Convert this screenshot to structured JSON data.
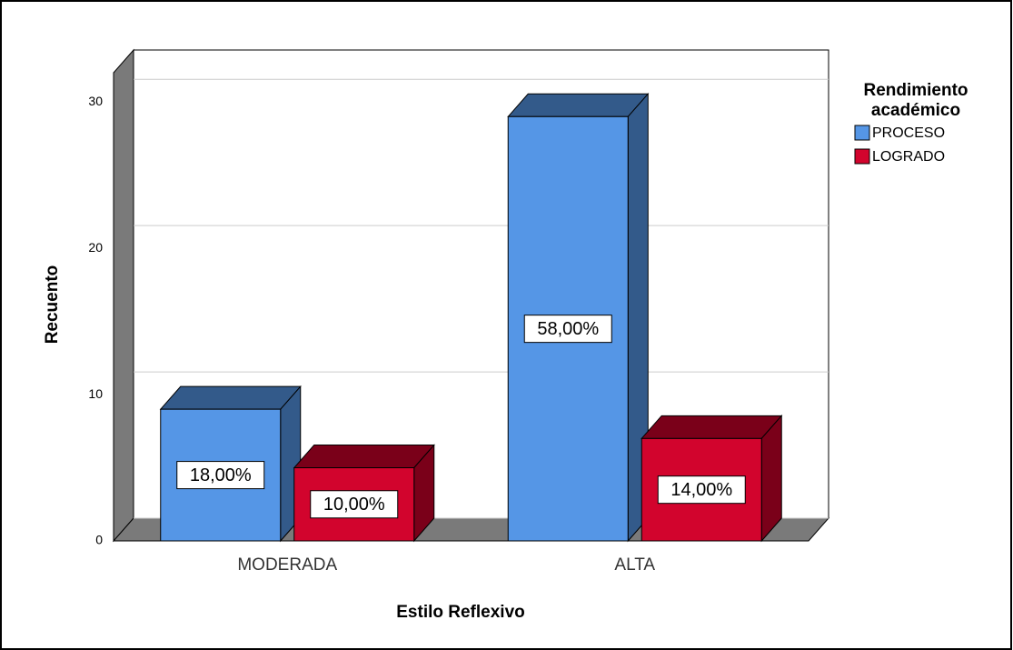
{
  "chart_data": {
    "type": "bar3d",
    "x_label": "Estilo Reflexivo",
    "y_label": "Recuento",
    "legend_title": "Rendimiento académico",
    "categories": [
      "MODERADA",
      "ALTA"
    ],
    "series": [
      {
        "name": "PROCESO",
        "color": "#5596e6",
        "side_color": "#335a8a",
        "values": [
          9,
          29
        ],
        "percent_labels": [
          "18,00%",
          "58,00%"
        ]
      },
      {
        "name": "LOGRADO",
        "color": "#d2042d",
        "side_color": "#7a0019",
        "values": [
          5,
          7
        ],
        "percent_labels": [
          "10,00%",
          "14,00%"
        ]
      }
    ],
    "ylim": [
      0,
      32
    ],
    "yticks": [
      0,
      10,
      20,
      30
    ],
    "grid": true,
    "legend": "right"
  }
}
